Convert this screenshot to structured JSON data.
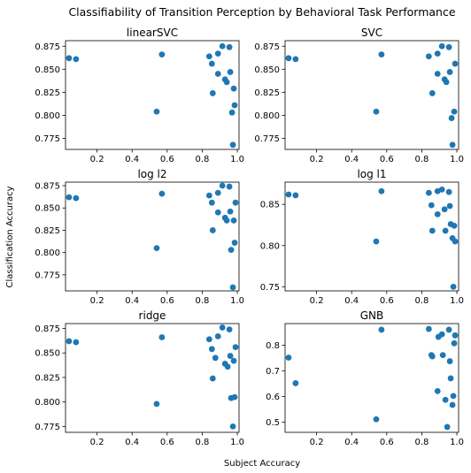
{
  "figure": {
    "title": "Classifiability of Transition Perception by Behavioral Task Performance",
    "xlabel": "Subject Accuracy",
    "ylabel": "Classification Accuracy"
  },
  "colors": {
    "marker": "#1f77b4",
    "axis": "#000000"
  },
  "chart_data": [
    {
      "type": "scatter",
      "title": "linearSVC",
      "xlim": [
        0.02,
        1.01
      ],
      "ylim": [
        0.763,
        0.881
      ],
      "xticks": [
        "0.2",
        "0.4",
        "0.6",
        "0.8",
        "1.0"
      ],
      "xtick_values": [
        0.2,
        0.4,
        0.6,
        0.8,
        1.0
      ],
      "yticks": [
        "0.775",
        "0.800",
        "0.825",
        "0.850",
        "0.875"
      ],
      "ytick_values": [
        0.775,
        0.8,
        0.825,
        0.85,
        0.875
      ],
      "x": [
        0.04,
        0.08,
        0.54,
        0.57,
        0.84,
        0.855,
        0.86,
        0.89,
        0.89,
        0.915,
        0.93,
        0.94,
        0.955,
        0.96,
        0.97,
        0.975,
        0.98,
        0.985
      ],
      "y": [
        0.862,
        0.861,
        0.804,
        0.866,
        0.864,
        0.856,
        0.824,
        0.845,
        0.867,
        0.875,
        0.839,
        0.836,
        0.874,
        0.847,
        0.803,
        0.768,
        0.829,
        0.811
      ]
    },
    {
      "type": "scatter",
      "title": "SVC",
      "xlim": [
        0.02,
        1.01
      ],
      "ylim": [
        0.763,
        0.881
      ],
      "xticks": [
        "0.2",
        "0.4",
        "0.6",
        "0.8",
        "1.0"
      ],
      "xtick_values": [
        0.2,
        0.4,
        0.6,
        0.8,
        1.0
      ],
      "yticks": [
        "0.775",
        "0.800",
        "0.825",
        "0.850",
        "0.875"
      ],
      "ytick_values": [
        0.775,
        0.8,
        0.825,
        0.85,
        0.875
      ],
      "x": [
        0.04,
        0.08,
        0.54,
        0.57,
        0.84,
        0.86,
        0.89,
        0.89,
        0.915,
        0.93,
        0.94,
        0.955,
        0.96,
        0.97,
        0.975,
        0.985,
        0.99
      ],
      "y": [
        0.862,
        0.861,
        0.804,
        0.866,
        0.864,
        0.824,
        0.845,
        0.867,
        0.875,
        0.839,
        0.836,
        0.874,
        0.847,
        0.797,
        0.768,
        0.804,
        0.856
      ]
    },
    {
      "type": "scatter",
      "title": "log l2",
      "xlim": [
        0.02,
        1.01
      ],
      "ylim": [
        0.757,
        0.879
      ],
      "xticks": [
        "0.2",
        "0.4",
        "0.6",
        "0.8",
        "1.0"
      ],
      "xtick_values": [
        0.2,
        0.4,
        0.6,
        0.8,
        1.0
      ],
      "yticks": [
        "0.775",
        "0.800",
        "0.825",
        "0.850",
        "0.875"
      ],
      "ytick_values": [
        0.775,
        0.8,
        0.825,
        0.85,
        0.875
      ],
      "x": [
        0.04,
        0.08,
        0.54,
        0.57,
        0.84,
        0.855,
        0.86,
        0.89,
        0.89,
        0.915,
        0.93,
        0.94,
        0.955,
        0.96,
        0.965,
        0.975,
        0.98,
        0.985,
        0.99
      ],
      "y": [
        0.862,
        0.861,
        0.805,
        0.866,
        0.864,
        0.856,
        0.825,
        0.845,
        0.867,
        0.875,
        0.839,
        0.836,
        0.874,
        0.846,
        0.803,
        0.761,
        0.836,
        0.811,
        0.856
      ]
    },
    {
      "type": "scatter",
      "title": "log l1",
      "xlim": [
        0.02,
        1.01
      ],
      "ylim": [
        0.745,
        0.877
      ],
      "xticks": [
        "0.2",
        "0.4",
        "0.6",
        "0.8",
        "1.0"
      ],
      "xtick_values": [
        0.2,
        0.4,
        0.6,
        0.8,
        1.0
      ],
      "yticks": [
        "0.75",
        "0.80",
        "0.85"
      ],
      "ytick_values": [
        0.75,
        0.8,
        0.85
      ],
      "x": [
        0.04,
        0.08,
        0.54,
        0.57,
        0.84,
        0.855,
        0.86,
        0.89,
        0.89,
        0.915,
        0.93,
        0.935,
        0.955,
        0.96,
        0.965,
        0.975,
        0.98,
        0.985,
        0.99
      ],
      "y": [
        0.862,
        0.861,
        0.805,
        0.866,
        0.864,
        0.849,
        0.818,
        0.838,
        0.866,
        0.868,
        0.844,
        0.818,
        0.865,
        0.848,
        0.826,
        0.809,
        0.75,
        0.824,
        0.805
      ]
    },
    {
      "type": "scatter",
      "title": "ridge",
      "xlim": [
        0.02,
        1.01
      ],
      "ylim": [
        0.769,
        0.88
      ],
      "xticks": [
        "0.2",
        "0.4",
        "0.6",
        "0.8",
        "1.0"
      ],
      "xtick_values": [
        0.2,
        0.4,
        0.6,
        0.8,
        1.0
      ],
      "yticks": [
        "0.775",
        "0.800",
        "0.825",
        "0.850",
        "0.875"
      ],
      "ytick_values": [
        0.775,
        0.8,
        0.825,
        0.85,
        0.875
      ],
      "x": [
        0.04,
        0.08,
        0.54,
        0.57,
        0.84,
        0.855,
        0.86,
        0.875,
        0.89,
        0.915,
        0.93,
        0.945,
        0.955,
        0.96,
        0.965,
        0.975,
        0.98,
        0.985,
        0.99
      ],
      "y": [
        0.862,
        0.861,
        0.798,
        0.866,
        0.864,
        0.854,
        0.824,
        0.845,
        0.867,
        0.876,
        0.839,
        0.836,
        0.874,
        0.847,
        0.804,
        0.775,
        0.842,
        0.805,
        0.856
      ]
    },
    {
      "type": "scatter",
      "title": "GNB",
      "xlim": [
        0.02,
        1.01
      ],
      "ylim": [
        0.46,
        0.885
      ],
      "xticks": [
        "0.2",
        "0.4",
        "0.6",
        "0.8",
        "1.0"
      ],
      "xtick_values": [
        0.2,
        0.4,
        0.6,
        0.8,
        1.0
      ],
      "yticks": [
        "0.5",
        "0.6",
        "0.7",
        "0.8"
      ],
      "ytick_values": [
        0.5,
        0.6,
        0.7,
        0.8
      ],
      "x": [
        0.04,
        0.08,
        0.54,
        0.57,
        0.84,
        0.855,
        0.86,
        0.89,
        0.895,
        0.915,
        0.92,
        0.935,
        0.945,
        0.955,
        0.96,
        0.965,
        0.975,
        0.98,
        0.985,
        0.99
      ],
      "y": [
        0.752,
        0.652,
        0.511,
        0.861,
        0.864,
        0.762,
        0.757,
        0.621,
        0.833,
        0.843,
        0.762,
        0.587,
        0.481,
        0.861,
        0.738,
        0.671,
        0.567,
        0.602,
        0.808,
        0.839
      ]
    }
  ]
}
